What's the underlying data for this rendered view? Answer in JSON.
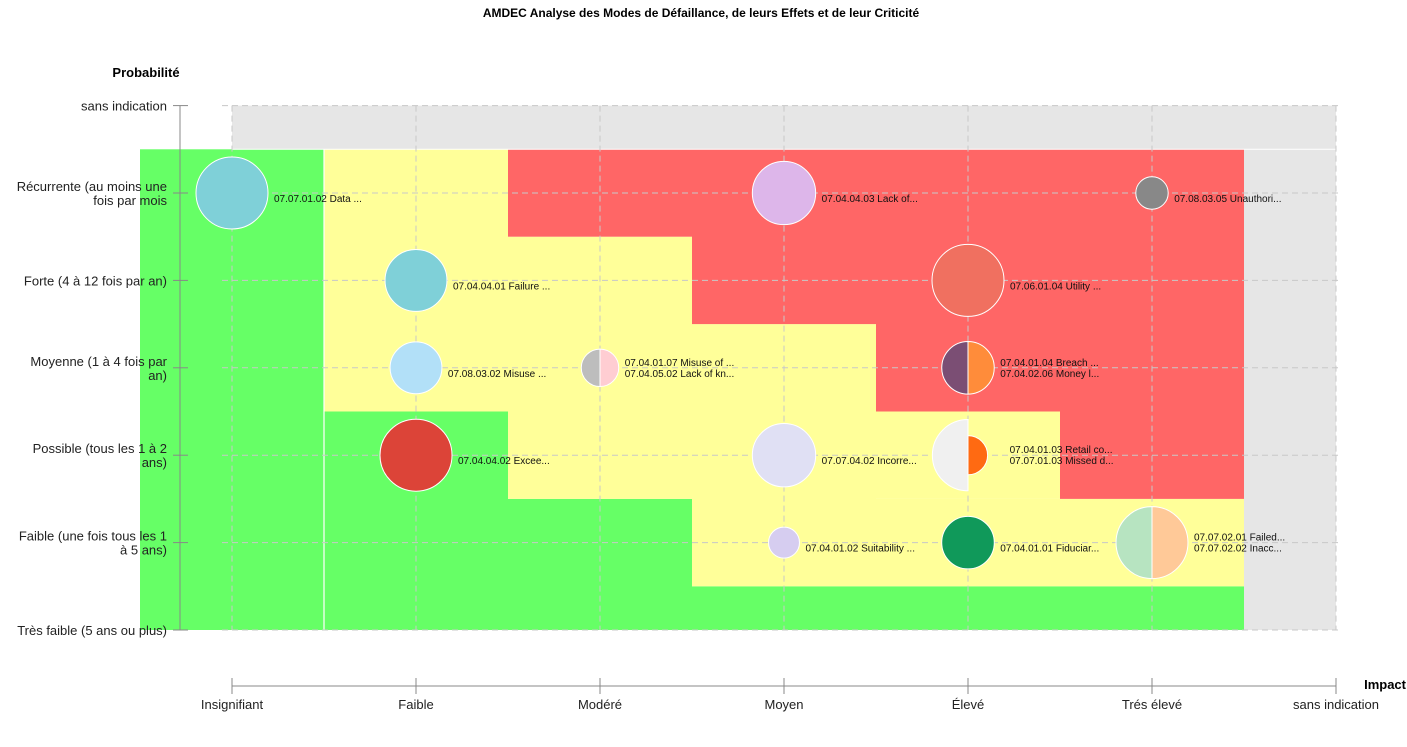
{
  "chart_data": {
    "type": "scatter",
    "title": "AMDEC Analyse des Modes de Défaillance, de leurs Effets et de leur Criticité",
    "xlabel": "Impact",
    "ylabel": "Probabilité",
    "x_categories": [
      "Insignifiant",
      "Faible",
      "Modéré",
      "Moyen",
      "Élevé",
      "Trés élevé",
      "sans indication"
    ],
    "y_categories": [
      "Très faible (5 ans ou plus)",
      "Faible (une fois tous les 1 à 5 ans)",
      "Possible (tous les 1 à 2 ans)",
      "Moyenne (1 à 4 fois par an)",
      "Forte (4 à 12 fois par an)",
      "Récurrente (au moins une fois par mois",
      "sans indication"
    ],
    "y_tick_lines": [
      [
        "Très faible (5 ans ou plus)"
      ],
      [
        "Faible (une fois tous les 1",
        "à 5 ans)"
      ],
      [
        "Possible (tous les 1 à 2",
        "ans)"
      ],
      [
        "Moyenne (1 à 4 fois par",
        "an)"
      ],
      [
        "Forte (4 à 12 fois par an)"
      ],
      [
        "Récurrente (au moins une",
        "fois par mois"
      ],
      [
        "sans indication"
      ]
    ],
    "grid": true,
    "zone_colors": {
      "low": "#66ff66",
      "medium": "#ffff99",
      "high": "#ff6666",
      "none": "#e6e6e6"
    },
    "zones": [
      {
        "level": "low",
        "x": [
          -0.5,
          0.5
        ],
        "y": [
          0,
          5.5
        ]
      },
      {
        "level": "low",
        "x": [
          0.5,
          1.5
        ],
        "y": [
          0,
          2.5
        ]
      },
      {
        "level": "low",
        "x": [
          1.5,
          2.5
        ],
        "y": [
          0,
          1.5
        ]
      },
      {
        "level": "low",
        "x": [
          2.5,
          5.5
        ],
        "y": [
          0,
          0.5
        ]
      },
      {
        "level": "medium",
        "x": [
          0.5,
          1.5
        ],
        "y": [
          2.5,
          5.5
        ]
      },
      {
        "level": "medium",
        "x": [
          1.5,
          2.5
        ],
        "y": [
          1.5,
          4.5
        ]
      },
      {
        "level": "medium",
        "x": [
          2.5,
          3.5
        ],
        "y": [
          0.5,
          3.5
        ]
      },
      {
        "level": "medium",
        "x": [
          3.5,
          5.5
        ],
        "y": [
          0.5,
          1.5
        ]
      },
      {
        "level": "medium",
        "x": [
          3.5,
          4.5
        ],
        "y": [
          1.5,
          2.5
        ]
      },
      {
        "level": "high",
        "x": [
          1.5,
          2.5
        ],
        "y": [
          4.5,
          5.5
        ]
      },
      {
        "level": "high",
        "x": [
          2.5,
          3.5
        ],
        "y": [
          3.5,
          5.5
        ]
      },
      {
        "level": "high",
        "x": [
          3.5,
          4.5
        ],
        "y": [
          2.5,
          5.5
        ]
      },
      {
        "level": "high",
        "x": [
          4.5,
          5.5
        ],
        "y": [
          1.5,
          5.5
        ]
      },
      {
        "level": "none",
        "x": [
          0,
          6
        ],
        "y": [
          5.5,
          6
        ]
      },
      {
        "level": "none",
        "x": [
          5.5,
          6
        ],
        "y": [
          0,
          5.5
        ]
      }
    ],
    "points": [
      {
        "x": 0,
        "y": 5,
        "size": 1.0,
        "labels": [
          "07.07.01.02 Data ..."
        ],
        "slices": [
          {
            "color": "#7fd0d8",
            "value": 1
          }
        ]
      },
      {
        "x": 3,
        "y": 5,
        "size": 0.88,
        "labels": [
          "07.04.04.03 Lack of..."
        ],
        "slices": [
          {
            "color": "#ddb6ea",
            "value": 1
          }
        ]
      },
      {
        "x": 5,
        "y": 5,
        "size": 0.45,
        "labels": [
          "07.08.03.05 Unauthori..."
        ],
        "slices": [
          {
            "color": "#888888",
            "value": 1
          }
        ]
      },
      {
        "x": 1,
        "y": 4,
        "size": 0.86,
        "labels": [
          "07.04.04.01 Failure ..."
        ],
        "slices": [
          {
            "color": "#7fd0d8",
            "value": 1
          }
        ]
      },
      {
        "x": 4,
        "y": 4,
        "size": 1.0,
        "labels": [
          "07.06.01.04 Utility ..."
        ],
        "slices": [
          {
            "color": "#f07060",
            "value": 1
          }
        ]
      },
      {
        "x": 1,
        "y": 3,
        "size": 0.72,
        "labels": [
          "07.08.03.02 Misuse ..."
        ],
        "slices": [
          {
            "color": "#b2e0f8",
            "value": 1
          }
        ]
      },
      {
        "x": 2,
        "y": 3,
        "size": 0.52,
        "labels": [
          "07.04.01.07 Misuse of ...",
          "07.04.05.02 Lack of kn..."
        ],
        "slices": [
          {
            "color": "#bdbdbd",
            "value": 1
          },
          {
            "color": "#ffcdd2",
            "value": 1
          }
        ]
      },
      {
        "x": 4,
        "y": 3,
        "size": 0.73,
        "labels": [
          "07.04.01.04 Breach ...",
          "07.04.02.06 Money l..."
        ],
        "slices": [
          {
            "color": "#7b4e74",
            "value": 1
          },
          {
            "color": "#ff8c3a",
            "value": 1
          }
        ]
      },
      {
        "x": 1,
        "y": 2,
        "size": 1.0,
        "labels": [
          "07.04.04.02 Excee..."
        ],
        "slices": [
          {
            "color": "#dc4438",
            "value": 1
          }
        ]
      },
      {
        "x": 3,
        "y": 2,
        "size": 0.88,
        "labels": [
          "07.07.04.02 Incorre..."
        ],
        "slices": [
          {
            "color": "#e0e0f4",
            "value": 1
          }
        ]
      },
      {
        "x": 4,
        "y": 2,
        "size": 0.99,
        "labels": [
          "07.04.01.03 Retail co...",
          "07.07.01.03 Missed d..."
        ],
        "slices": [
          {
            "color": "#f0f0f0",
            "value": 1
          },
          {
            "color": "#ff6a12",
            "value": 0.55
          }
        ]
      },
      {
        "x": 3,
        "y": 1,
        "size": 0.43,
        "labels": [
          "07.04.01.02 Suitability ..."
        ],
        "slices": [
          {
            "color": "#d6cdf0",
            "value": 1
          }
        ]
      },
      {
        "x": 4,
        "y": 1,
        "size": 0.73,
        "labels": [
          "07.04.01.01 Fiduciar..."
        ],
        "slices": [
          {
            "color": "#10995a",
            "value": 1
          }
        ]
      },
      {
        "x": 5,
        "y": 1,
        "size": 1.0,
        "labels": [
          "07.07.02.01 Failed...",
          "07.07.02.02 Inacc..."
        ],
        "slices": [
          {
            "color": "#b7e4c1",
            "value": 1
          },
          {
            "color": "#ffc998",
            "value": 1
          }
        ]
      }
    ]
  }
}
